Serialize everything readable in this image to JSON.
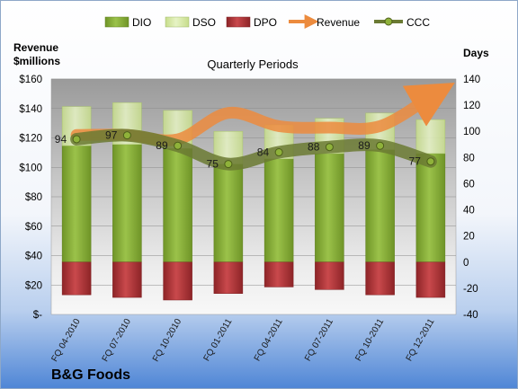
{
  "chart_data": {
    "type": "bar",
    "company": "B&G Foods",
    "subtitle": "Quarterly Periods",
    "y_left_title": [
      "Revenue",
      "$millions"
    ],
    "y_right_title": "Days",
    "y_left_ticks": [
      "$160",
      "$140",
      "$120",
      "$100",
      "$80",
      "$60",
      "$40",
      "$20",
      "$-"
    ],
    "y_right_ticks": [
      "140",
      "120",
      "100",
      "80",
      "60",
      "40",
      "20",
      "0",
      "-20",
      "-40"
    ],
    "y_left_range": [
      0,
      160
    ],
    "y_right_range": [
      -40,
      140
    ],
    "categories": [
      "FQ 04-2010",
      "FQ 07-2010",
      "FQ 10-2010",
      "FQ 01-2011",
      "FQ 04-2011",
      "FQ 07-2011",
      "FQ 10-2011",
      "FQ 12-2011"
    ],
    "legend": [
      "DIO",
      "DSO",
      "DPO",
      "Revenue",
      "CCC"
    ],
    "series": [
      {
        "name": "DIO",
        "axis": "right",
        "values": [
          89,
          90,
          87,
          75,
          79,
          83,
          86,
          83
        ]
      },
      {
        "name": "DSO",
        "axis": "right",
        "values": [
          30,
          32,
          29,
          25,
          26,
          27,
          28,
          26
        ]
      },
      {
        "name": "DPO",
        "axis": "right",
        "values": [
          -25,
          -27,
          -29,
          -24,
          -19,
          -21,
          -25,
          -27
        ]
      },
      {
        "name": "Revenue",
        "axis": "left",
        "values": [
          122,
          122,
          119,
          137,
          128,
          127,
          128,
          148
        ]
      },
      {
        "name": "CCC",
        "axis": "right",
        "values": [
          94,
          97,
          89,
          75,
          84,
          88,
          89,
          77
        ]
      }
    ],
    "ccc_labels": [
      "94",
      "97",
      "89",
      "75",
      "84",
      "88",
      "89",
      "77"
    ],
    "colors": {
      "dio": "#8fb23a",
      "dio_dark": "#5e7f1c",
      "dso": "#d8eba6",
      "dpo": "#b53a3d",
      "dpo_dark": "#7d1f22",
      "revenue": "#ec8b3e",
      "ccc": "#6b7a33",
      "ccc_marker": "#8fb23a"
    },
    "grid": true
  }
}
